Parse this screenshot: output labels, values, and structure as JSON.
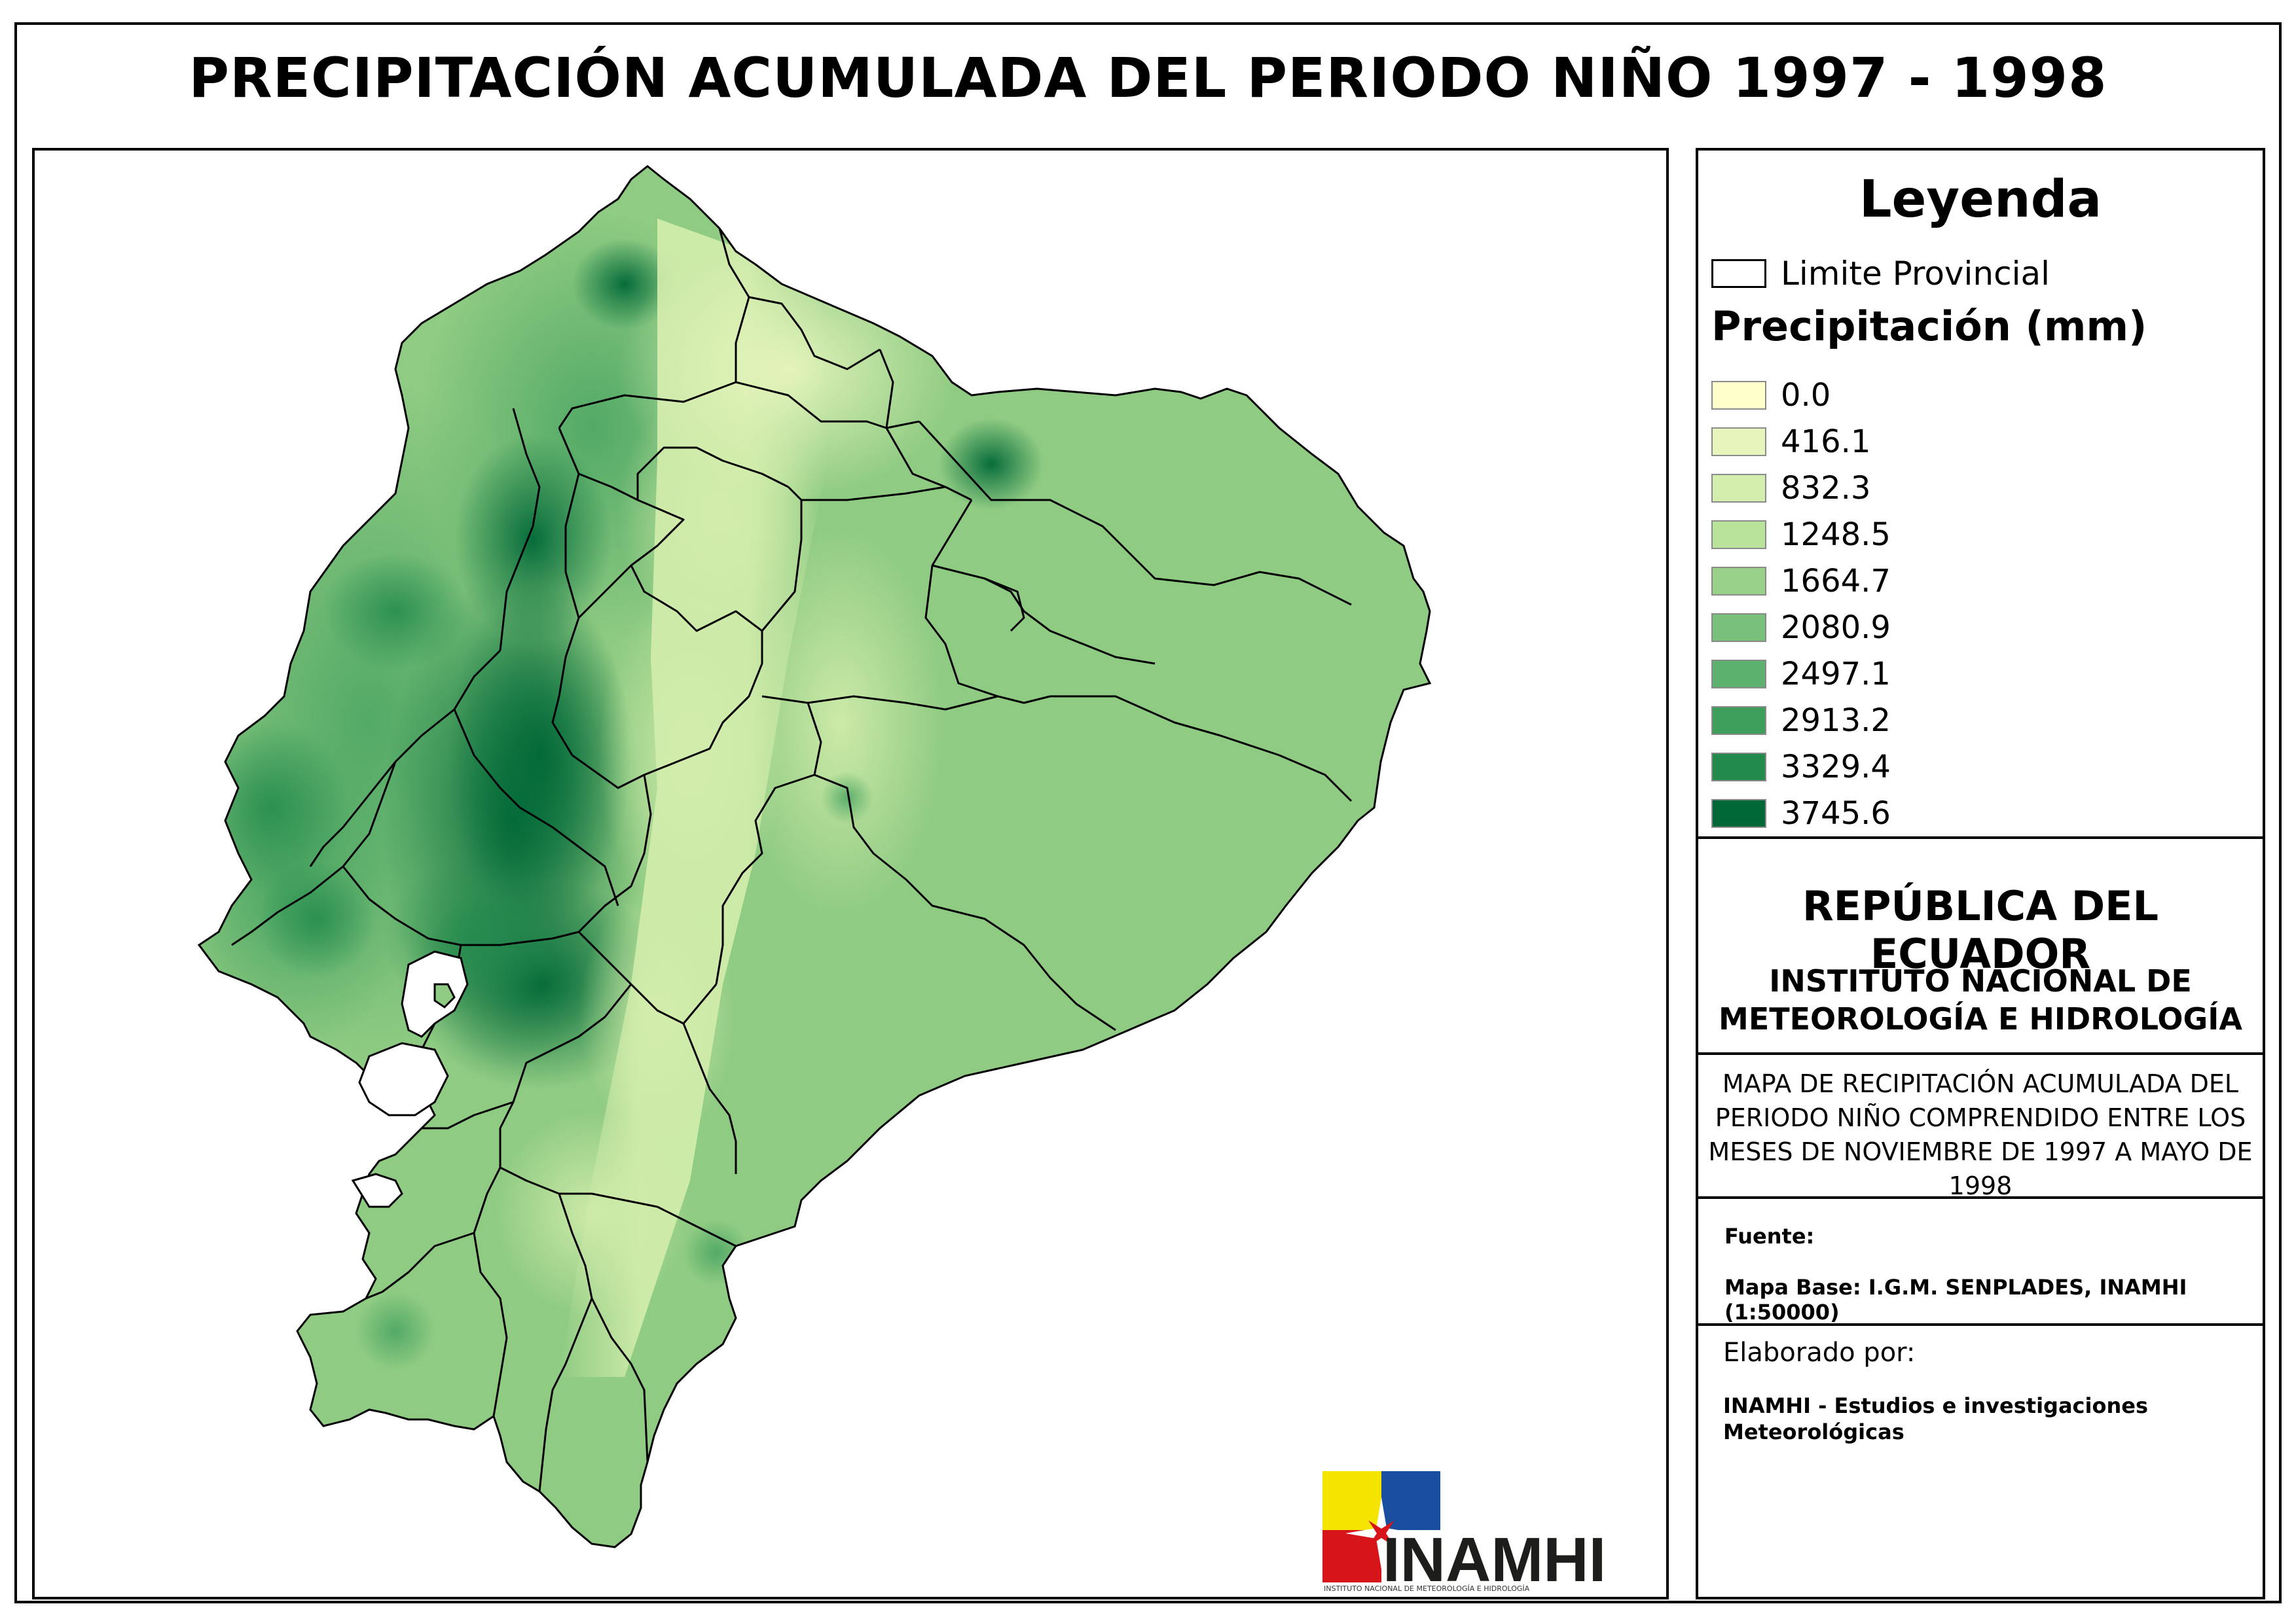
{
  "title": "PRECIPITACIÓN ACUMULADA DEL PERIODO NIÑO 1997 - 1998",
  "legend": {
    "title": "Leyenda",
    "boundary_label": "Limite Provincial",
    "precip_title": "Precipitación (mm)",
    "classes": [
      {
        "label": "0.0",
        "color": "#ffffcc"
      },
      {
        "label": "416.1",
        "color": "#e7f5bd"
      },
      {
        "label": "832.3",
        "color": "#d3edac"
      },
      {
        "label": "1248.5",
        "color": "#b9e29b"
      },
      {
        "label": "1664.7",
        "color": "#9ad18a"
      },
      {
        "label": "2080.9",
        "color": "#79c07b"
      },
      {
        "label": "2497.1",
        "color": "#5bb16d"
      },
      {
        "label": "2913.2",
        "color": "#3e9e5c"
      },
      {
        "label": "3329.4",
        "color": "#238a4d"
      },
      {
        "label": "3745.6",
        "color": "#006837"
      }
    ]
  },
  "info": {
    "republic": "REPÚBLICA DEL ECUADOR",
    "institute_line1": "INSTITUTO NACIONAL DE",
    "institute_line2": "METEOROLOGÍA E HIDROLOGÍA",
    "description": "MAPA DE RECIPITACIÓN ACUMULADA DEL PERIODO NIÑO COMPRENDIDO ENTRE LOS MESES DE NOVIEMBRE DE 1997 A MAYO DE 1998",
    "fuente_label": "Fuente:",
    "fuente_value": "Mapa Base: I.G.M. SENPLADES, INAMHI (1:50000)",
    "elaborado_label": "Elaborado por:",
    "elaborado_value": "INAMHI - Estudios e investigaciones Meteorológicas"
  },
  "logo": {
    "text": "INAMHI",
    "subtext": "INSTITUTO NACIONAL DE METEOROLOGÍA E HIDROLOGÍA",
    "colors": {
      "yellow": "#f5e400",
      "blue": "#1a4fa0",
      "red": "#d7141a"
    }
  }
}
